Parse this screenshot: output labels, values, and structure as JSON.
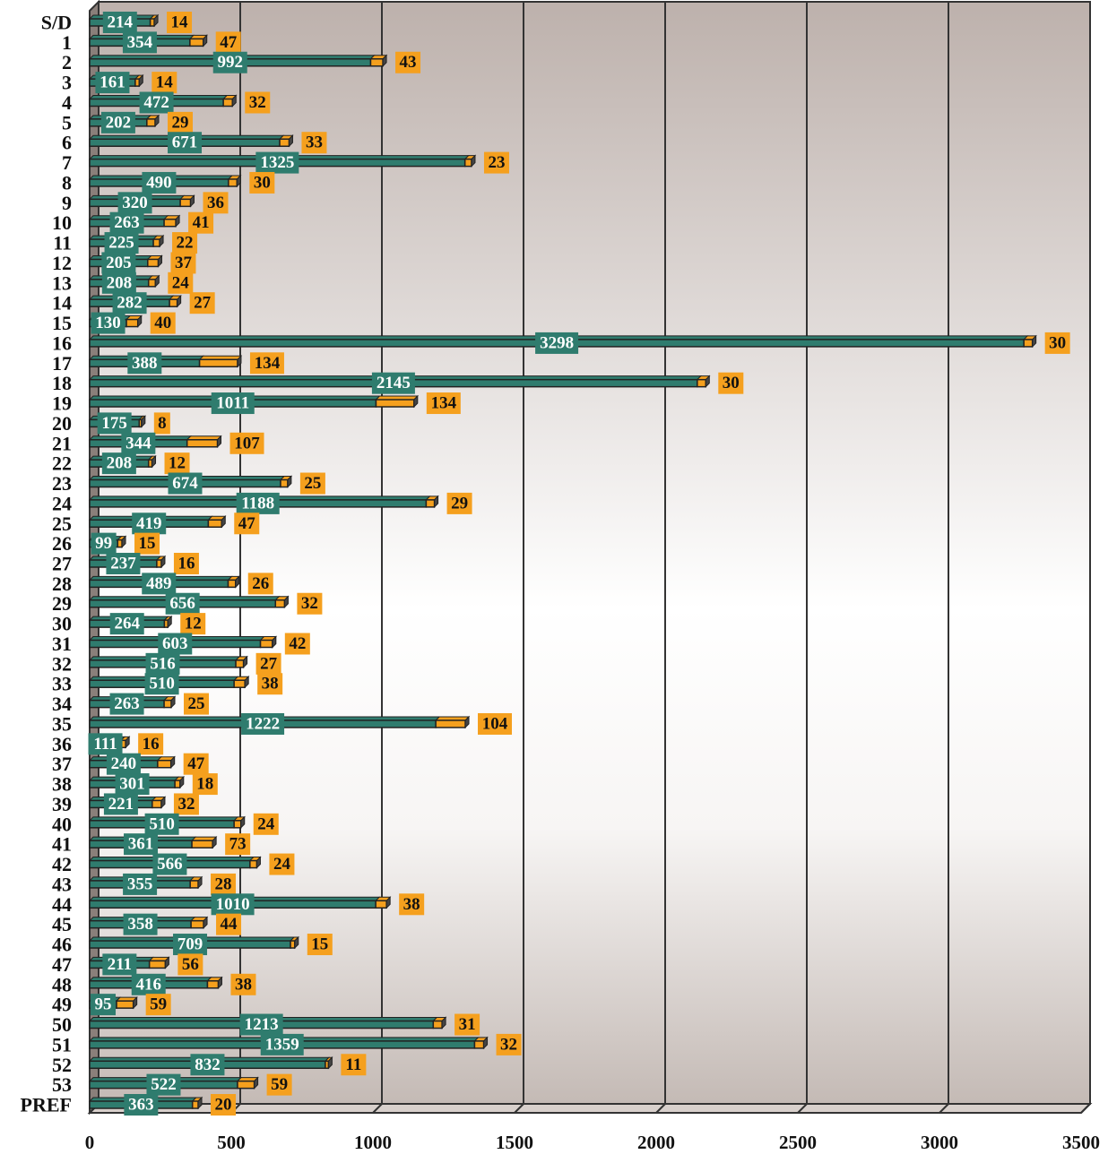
{
  "chart_data": {
    "type": "stacked_bar",
    "orientation": "horizontal",
    "categories": [
      "S/D",
      "1",
      "2",
      "3",
      "4",
      "5",
      "6",
      "7",
      "8",
      "9",
      "10",
      "11",
      "12",
      "13",
      "14",
      "15",
      "16",
      "17",
      "18",
      "19",
      "20",
      "21",
      "22",
      "23",
      "24",
      "25",
      "26",
      "27",
      "28",
      "29",
      "30",
      "31",
      "32",
      "33",
      "34",
      "35",
      "36",
      "37",
      "38",
      "39",
      "40",
      "41",
      "42",
      "43",
      "44",
      "45",
      "46",
      "47",
      "48",
      "49",
      "50",
      "51",
      "52",
      "53",
      "PREF"
    ],
    "series": [
      {
        "color": "#2f7c6e",
        "values": [
          214,
          354,
          992,
          161,
          472,
          202,
          671,
          1325,
          490,
          320,
          263,
          225,
          205,
          208,
          282,
          130,
          3298,
          388,
          2145,
          1011,
          175,
          344,
          208,
          674,
          1188,
          419,
          99,
          237,
          489,
          656,
          264,
          603,
          516,
          510,
          263,
          1222,
          111,
          240,
          301,
          221,
          510,
          361,
          566,
          355,
          1010,
          358,
          709,
          211,
          416,
          95,
          1213,
          1359,
          832,
          522,
          363
        ]
      },
      {
        "color": "#f5a01e",
        "values": [
          14,
          47,
          43,
          14,
          32,
          29,
          33,
          23,
          30,
          36,
          41,
          22,
          37,
          24,
          27,
          40,
          30,
          134,
          30,
          134,
          8,
          107,
          12,
          25,
          29,
          47,
          15,
          16,
          26,
          32,
          12,
          42,
          27,
          38,
          25,
          104,
          16,
          47,
          18,
          32,
          24,
          73,
          24,
          28,
          38,
          44,
          15,
          56,
          38,
          59,
          31,
          32,
          11,
          59,
          20
        ]
      }
    ],
    "xlim": [
      0,
      3500
    ],
    "xticks": [
      0,
      500,
      1000,
      1500,
      2000,
      2500,
      3000,
      3500
    ],
    "grid": true
  }
}
